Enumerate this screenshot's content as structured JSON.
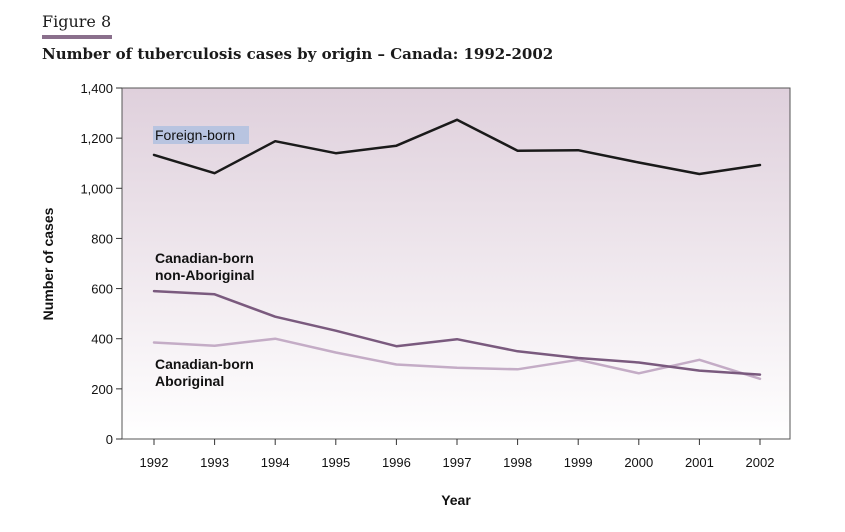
{
  "figure": {
    "label": "Figure 8",
    "title": "Number of tuberculosis cases by origin – Canada: 1992-2002"
  },
  "chart_data": {
    "type": "line",
    "title": "Number of tuberculosis cases by origin – Canada: 1992-2002",
    "xlabel": "Year",
    "ylabel": "Number of cases",
    "x": [
      "1992",
      "1993",
      "1994",
      "1995",
      "1996",
      "1997",
      "1998",
      "1999",
      "2000",
      "2001",
      "2002"
    ],
    "yticks": [
      "0",
      "200",
      "400",
      "600",
      "800",
      "1,000",
      "1,200",
      "1,400"
    ],
    "ylim": [
      0,
      1400
    ],
    "grid": false,
    "series": [
      {
        "name": "Foreign-born",
        "color": "#1a1a1a",
        "values": [
          1133,
          1060,
          1188,
          1140,
          1170,
          1273,
          1150,
          1152,
          1103,
          1057,
          1093
        ]
      },
      {
        "name": "Canadian-born non-Aboriginal",
        "color": "#7a5a7e",
        "values": [
          590,
          577,
          488,
          432,
          370,
          398,
          350,
          323,
          305,
          273,
          257
        ]
      },
      {
        "name": "Canadian-born Aboriginal",
        "color": "#c4acc6",
        "values": [
          385,
          372,
          400,
          345,
          297,
          284,
          278,
          316,
          262,
          316,
          240
        ]
      }
    ],
    "series_labels": {
      "foreign": "Foreign-born",
      "nonab_line1": "Canadian-born",
      "nonab_line2": "non-Aboriginal",
      "ab_line1": "Canadian-born",
      "ab_line2": "Aboriginal"
    },
    "label_highlight_color": "#b8c4e0",
    "background_top": "#dfd0dc",
    "background_bottom": "#ffffff"
  }
}
